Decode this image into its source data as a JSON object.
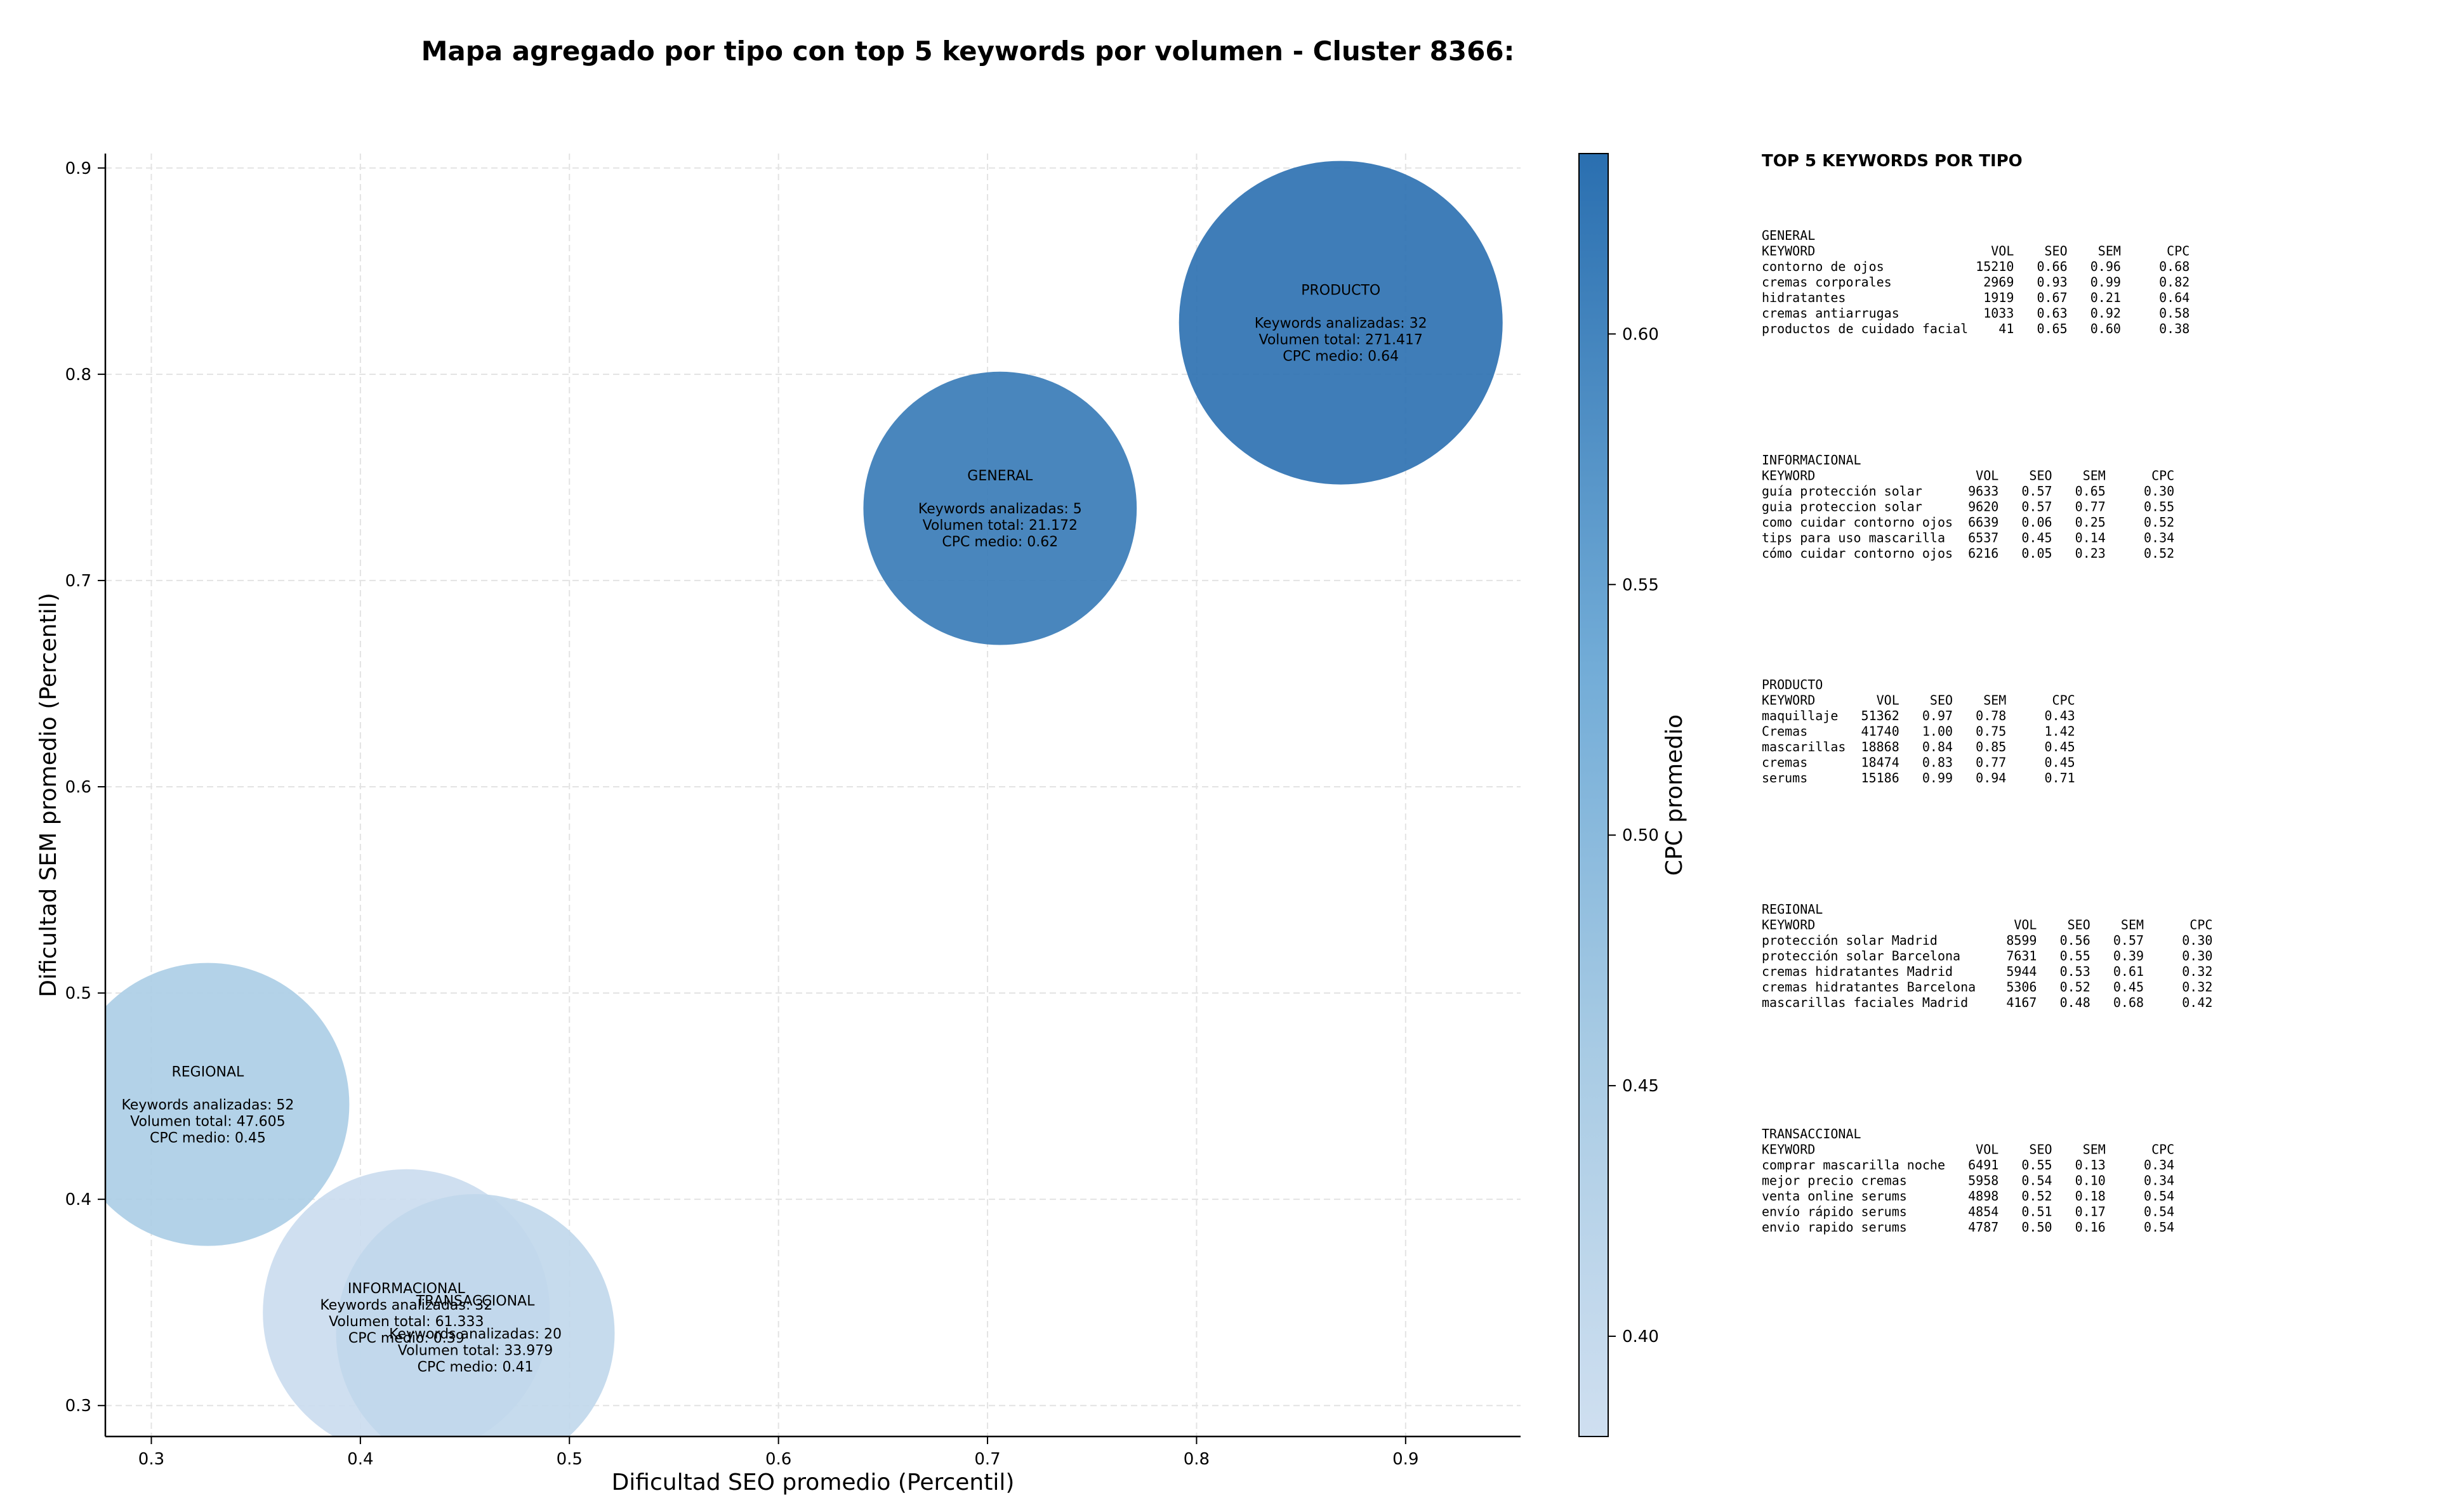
{
  "chart_data": {
    "type": "scatter",
    "variant": "bubble",
    "title": "Mapa agregado por tipo con top 5 keywords por volumen - Cluster 8366:",
    "xlabel": "Dificultad SEO promedio (Percentil)",
    "ylabel": "Dificultad SEM promedio (Percentil)",
    "xlim": [
      0.278,
      0.955
    ],
    "ylim": [
      0.285,
      0.907
    ],
    "xticks": [
      "0.3",
      "0.4",
      "0.5",
      "0.6",
      "0.7",
      "0.8",
      "0.9"
    ],
    "yticks": [
      "0.3",
      "0.4",
      "0.5",
      "0.6",
      "0.7",
      "0.8",
      "0.9"
    ],
    "grid": true,
    "colorbar": {
      "label": "CPC promedio",
      "range": [
        0.38,
        0.636
      ],
      "ticks": [
        "0.40",
        "0.45",
        "0.50",
        "0.55",
        "0.60"
      ],
      "color_low": "#c9dbee",
      "color_high": "#2a6fb0"
    },
    "points": [
      {
        "type": "PRODUCTO",
        "x": 0.869,
        "y": 0.825,
        "keywords": 32,
        "volume": 271417,
        "cpc": 0.64,
        "lines": [
          "PRODUCTO",
          "",
          "Keywords analizadas: 32",
          "Volumen total: 271.417",
          "CPC medio: 0.64"
        ]
      },
      {
        "type": "GENERAL",
        "x": 0.706,
        "y": 0.735,
        "keywords": 5,
        "volume": 21172,
        "cpc": 0.62,
        "lines": [
          "GENERAL",
          "",
          "Keywords analizadas: 5",
          "Volumen total: 21.172",
          "CPC medio: 0.62"
        ]
      },
      {
        "type": "REGIONAL",
        "x": 0.327,
        "y": 0.446,
        "keywords": 52,
        "volume": 47605,
        "cpc": 0.45,
        "lines": [
          "REGIONAL",
          "",
          "Keywords analizadas: 52",
          "Volumen total: 47.605",
          "CPC medio: 0.45"
        ]
      },
      {
        "type": "INFORMACIONAL",
        "x": 0.422,
        "y": 0.345,
        "keywords": 32,
        "volume": 61333,
        "cpc": 0.39,
        "lines": [
          "INFORMACIONAL",
          "Keywords analizadas: 32",
          "Volumen total: 61.333",
          "CPC medio: 0.39"
        ]
      },
      {
        "type": "TRANSACCIONAL",
        "x": 0.455,
        "y": 0.335,
        "keywords": 20,
        "volume": 33979,
        "cpc": 0.41,
        "lines": [
          "TRANSACCIONAL",
          "",
          "Keywords analizadas: 20",
          "Volumen total: 33.979",
          "CPC medio: 0.41"
        ]
      }
    ],
    "side_panel": {
      "title": "TOP 5 KEYWORDS POR TIPO",
      "groups": [
        {
          "name": "GENERAL",
          "lines": [
            "KEYWORD                       VOL    SEO    SEM      CPC",
            "contorno de ojos            15210   0.66   0.96     0.68",
            "cremas corporales            2969   0.93   0.99     0.82",
            "hidratantes                  1919   0.67   0.21     0.64",
            "cremas antiarrugas           1033   0.63   0.92     0.58",
            "productos de cuidado facial    41   0.65   0.60     0.38"
          ]
        },
        {
          "name": "INFORMACIONAL",
          "lines": [
            "KEYWORD                     VOL    SEO    SEM      CPC",
            "guía protección solar      9633   0.57   0.65     0.30",
            "guia proteccion solar      9620   0.57   0.77     0.55",
            "como cuidar contorno ojos  6639   0.06   0.25     0.52",
            "tips para uso mascarilla   6537   0.45   0.14     0.34",
            "cómo cuidar contorno ojos  6216   0.05   0.23     0.52"
          ]
        },
        {
          "name": "PRODUCTO",
          "lines": [
            "KEYWORD        VOL    SEO    SEM      CPC",
            "maquillaje   51362   0.97   0.78     0.43",
            "Cremas       41740   1.00   0.75     1.42",
            "mascarillas  18868   0.84   0.85     0.45",
            "cremas       18474   0.83   0.77     0.45",
            "serums       15186   0.99   0.94     0.71"
          ]
        },
        {
          "name": "REGIONAL",
          "lines": [
            "KEYWORD                          VOL    SEO    SEM      CPC",
            "protección solar Madrid         8599   0.56   0.57     0.30",
            "protección solar Barcelona      7631   0.55   0.39     0.30",
            "cremas hidratantes Madrid       5944   0.53   0.61     0.32",
            "cremas hidratantes Barcelona    5306   0.52   0.45     0.32",
            "mascarillas faciales Madrid     4167   0.48   0.68     0.42"
          ]
        },
        {
          "name": "TRANSACCIONAL",
          "lines": [
            "KEYWORD                     VOL    SEO    SEM      CPC",
            "comprar mascarilla noche   6491   0.55   0.13     0.34",
            "mejor precio cremas        5958   0.54   0.10     0.34",
            "venta online serums        4898   0.52   0.18     0.54",
            "envío rápido serums        4854   0.51   0.17     0.54",
            "envio rapido serums        4787   0.50   0.16     0.54"
          ]
        }
      ]
    }
  }
}
